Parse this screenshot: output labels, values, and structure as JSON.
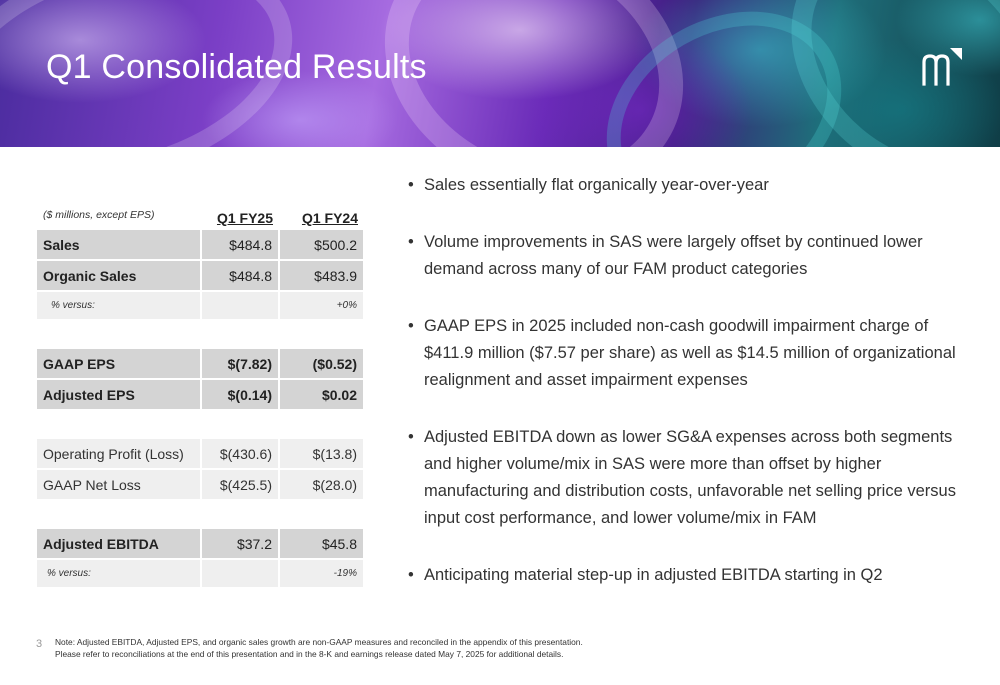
{
  "slide": {
    "title": "Q1 Consolidated Results",
    "page_number": "3"
  },
  "table": {
    "unit_note": "($ millions, except EPS)",
    "col1": "Q1 FY25",
    "col2": "Q1 FY24",
    "rows": [
      {
        "label": "Sales",
        "v1": "$484.8",
        "v2": "$500.2"
      },
      {
        "label": "Organic Sales",
        "v1": "$484.8",
        "v2": "$483.9"
      },
      {
        "label": "% versus:",
        "v1": "",
        "v2": "+0%"
      },
      {
        "label": "GAAP EPS",
        "v1": "$(7.82)",
        "v2": "($0.52)"
      },
      {
        "label": "Adjusted EPS",
        "v1": "$(0.14)",
        "v2": "$0.02"
      },
      {
        "label": "Operating Profit (Loss)",
        "v1": "$(430.6)",
        "v2": "$(13.8)"
      },
      {
        "label": "GAAP Net Loss",
        "v1": "$(425.5)",
        "v2": "$(28.0)"
      },
      {
        "label": "Adjusted EBITDA",
        "v1": "$37.2",
        "v2": "$45.8"
      },
      {
        "label": "% versus:",
        "v1": "",
        "v2": "-19%"
      }
    ]
  },
  "bullets": [
    "Sales essentially flat organically year-over-year",
    "Volume improvements in SAS were largely offset by continued lower demand across many of our FAM product categories",
    "GAAP EPS in 2025 included non-cash goodwill impairment charge of $411.9 million ($7.57 per share) as well as $14.5 million of organizational realignment and asset impairment expenses",
    "Adjusted EBITDA down as lower SG&A expenses across both segments and higher volume/mix in SAS were more than offset by higher manufacturing and distribution costs, unfavorable net selling price versus input cost performance, and lower volume/mix in FAM",
    "Anticipating material step-up in adjusted EBITDA starting in Q2"
  ],
  "footnote": {
    "line1": "Note: Adjusted EBITDA, Adjusted EPS, and organic sales growth are non-GAAP measures and reconciled in the appendix of this presentation.",
    "line2": "Please refer to reconciliations at the end of this presentation and in the 8-K and earnings release dated May 7, 2025 for additional details."
  },
  "icons": {
    "logo": "company-m-logo-icon"
  }
}
